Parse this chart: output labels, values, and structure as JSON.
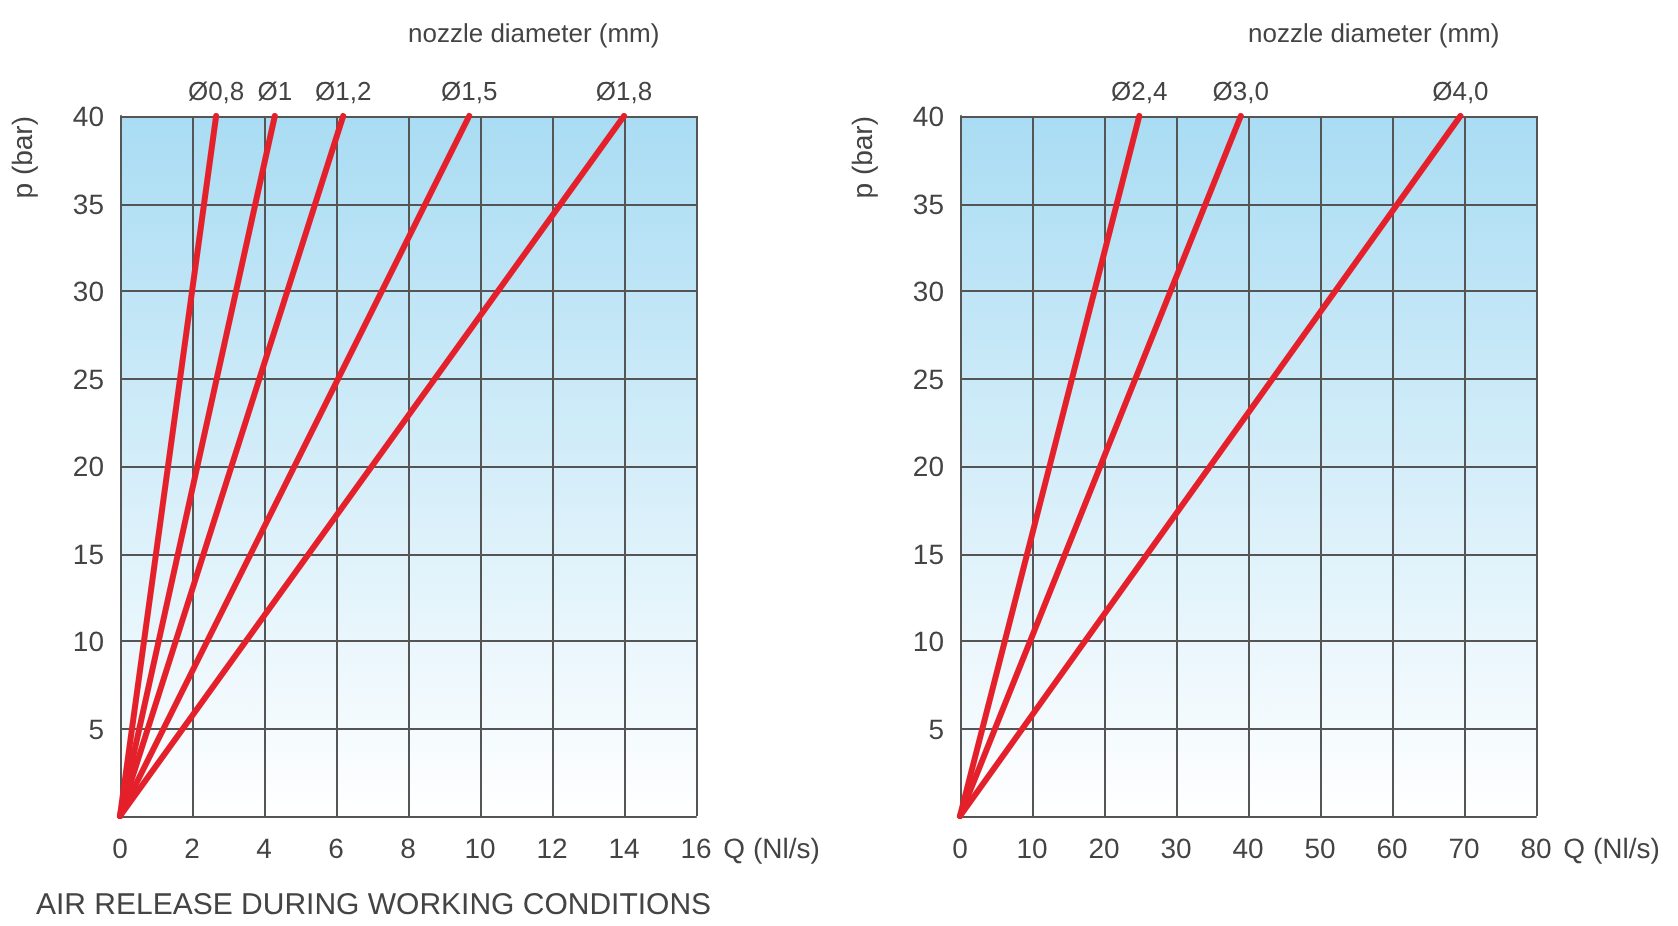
{
  "chart_data": [
    {
      "type": "line",
      "legend_title": "nozzle diameter (mm)",
      "xlabel": "Q (Nl/s)",
      "ylabel": "p (bar)",
      "annotations": [
        "AIR RELEASE DURING WORKING CONDITIONS"
      ],
      "xlim": [
        0,
        16
      ],
      "xticks": [
        0,
        2,
        4,
        6,
        8,
        10,
        12,
        14,
        16
      ],
      "ylim": [
        0,
        40
      ],
      "yticks": [
        {
          "value": 0,
          "label": null
        },
        5,
        10,
        15,
        20,
        25,
        30,
        35,
        40
      ],
      "grid": true,
      "marker": "none",
      "line_style": "solid",
      "legend": false,
      "series": [
        {
          "name": "Ø0,8",
          "color": "#e4202b",
          "x": [
            0,
            2.67
          ],
          "values": [
            0,
            40
          ]
        },
        {
          "name": "Ø1",
          "color": "#e4202b",
          "x": [
            0,
            4.3
          ],
          "values": [
            0,
            40
          ]
        },
        {
          "name": "Ø1,2",
          "color": "#e4202b",
          "x": [
            0,
            6.2
          ],
          "values": [
            0,
            40
          ]
        },
        {
          "name": "Ø1,5",
          "color": "#e4202b",
          "x": [
            0,
            9.7
          ],
          "values": [
            0,
            40
          ]
        },
        {
          "name": "Ø1,8",
          "color": "#e4202b",
          "x": [
            0,
            14
          ],
          "values": [
            0,
            40
          ]
        }
      ]
    },
    {
      "type": "line",
      "legend_title": "nozzle diameter (mm)",
      "xlabel": "Q (Nl/s)",
      "ylabel": "p (bar)",
      "xlim": [
        0,
        80
      ],
      "xticks": [
        0,
        10,
        20,
        30,
        40,
        50,
        60,
        70,
        80
      ],
      "ylim": [
        0,
        40
      ],
      "yticks": [
        {
          "value": 0,
          "label": null
        },
        5,
        10,
        15,
        20,
        25,
        30,
        35,
        40
      ],
      "grid": true,
      "marker": "none",
      "line_style": "solid",
      "legend": false,
      "series": [
        {
          "name": "Ø2,4",
          "color": "#e4202b",
          "x": [
            0,
            24.9
          ],
          "values": [
            0,
            40
          ]
        },
        {
          "name": "Ø3,0",
          "color": "#e4202b",
          "x": [
            0,
            39
          ],
          "values": [
            0,
            40
          ]
        },
        {
          "name": "Ø4,0",
          "color": "#e4202b",
          "x": [
            0,
            69.5
          ],
          "values": [
            0,
            40
          ]
        }
      ]
    }
  ]
}
